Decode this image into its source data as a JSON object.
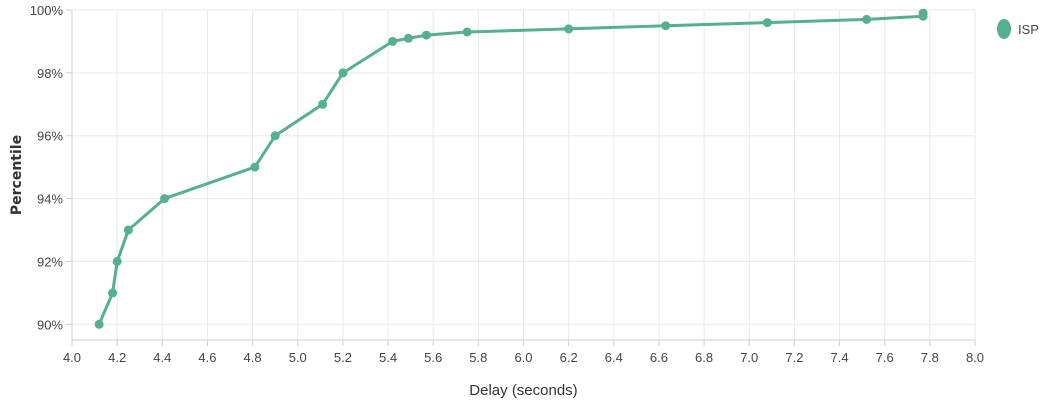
{
  "chart_data": {
    "type": "line",
    "xlabel": "Delay (seconds)",
    "ylabel": "Percentile",
    "xlim": [
      4.0,
      8.0
    ],
    "ylim": [
      89.5,
      100
    ],
    "x_ticks": [
      "4.0",
      "4.2",
      "4.4",
      "4.6",
      "4.8",
      "5.0",
      "5.2",
      "5.4",
      "5.6",
      "5.8",
      "6.0",
      "6.2",
      "6.4",
      "6.6",
      "6.8",
      "7.0",
      "7.2",
      "7.4",
      "7.6",
      "7.8",
      "8.0"
    ],
    "y_ticks": [
      {
        "value": 90,
        "label": "90%"
      },
      {
        "value": 92,
        "label": "92%"
      },
      {
        "value": 94,
        "label": "94%"
      },
      {
        "value": 96,
        "label": "96%"
      },
      {
        "value": 98,
        "label": "98%"
      },
      {
        "value": 100,
        "label": "100%"
      }
    ],
    "grid": true,
    "legend_position": "top-right",
    "series": [
      {
        "name": "ISP",
        "color": "#55b08e",
        "points": [
          [
            4.12,
            90
          ],
          [
            4.18,
            91
          ],
          [
            4.2,
            92
          ],
          [
            4.25,
            93
          ],
          [
            4.41,
            94
          ],
          [
            4.81,
            95
          ],
          [
            4.9,
            96
          ],
          [
            5.11,
            97
          ],
          [
            5.2,
            98
          ],
          [
            5.42,
            99
          ],
          [
            5.49,
            99.1
          ],
          [
            5.57,
            99.2
          ],
          [
            5.75,
            99.3
          ],
          [
            6.2,
            99.4
          ],
          [
            6.63,
            99.5
          ],
          [
            7.08,
            99.6
          ],
          [
            7.52,
            99.7
          ],
          [
            7.77,
            99.8
          ],
          [
            7.77,
            99.9
          ]
        ]
      }
    ]
  }
}
